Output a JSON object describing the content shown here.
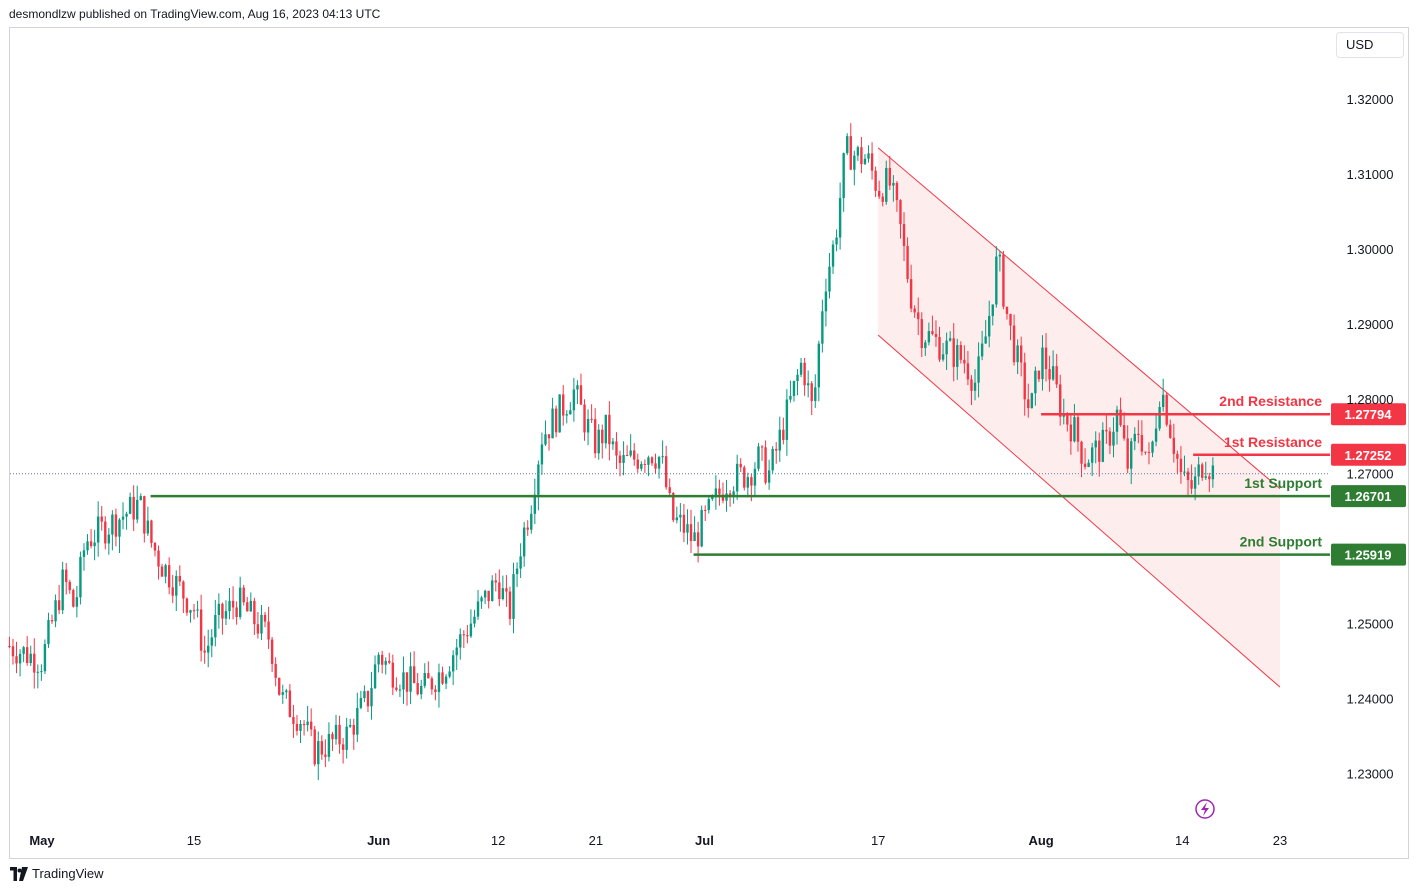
{
  "header": {
    "text": "desmondlzw published on TradingView.com, Aug 16, 2023 04:13 UTC"
  },
  "currency": {
    "label": "USD"
  },
  "footer": {
    "brand": "TradingView"
  },
  "colors": {
    "up": "#089981",
    "down": "#f23645",
    "support": "#2e7d32",
    "resistance": "#f23645",
    "channel_fill": "#fde7e7"
  },
  "chart_data": {
    "type": "candlestick",
    "title": "",
    "y_axis": {
      "ticks": [
        1.32,
        1.31,
        1.3,
        1.29,
        1.28,
        1.27,
        1.25,
        1.24,
        1.23
      ],
      "tick_labels": [
        "1.32000",
        "1.31000",
        "1.30000",
        "1.29000",
        "1.28000",
        "1.27000",
        "1.25000",
        "1.24000",
        "1.23000"
      ],
      "range": [
        1.2235,
        1.3295
      ]
    },
    "x_axis": {
      "labels": [
        {
          "text": "May",
          "date": "2023-05-01",
          "bold": true
        },
        {
          "text": "15",
          "date": "2023-05-15",
          "bold": false
        },
        {
          "text": "Jun",
          "date": "2023-06-01",
          "bold": true
        },
        {
          "text": "12",
          "date": "2023-06-12",
          "bold": false
        },
        {
          "text": "21",
          "date": "2023-06-21",
          "bold": false
        },
        {
          "text": "Jul",
          "date": "2023-07-01",
          "bold": true
        },
        {
          "text": "17",
          "date": "2023-07-17",
          "bold": false
        },
        {
          "text": "Aug",
          "date": "2023-08-01",
          "bold": true
        },
        {
          "text": "14",
          "date": "2023-08-14",
          "bold": false
        },
        {
          "text": "23",
          "date": "2023-08-23",
          "bold": false
        }
      ]
    },
    "price_path": [
      [
        "2023-04-28",
        1.247
      ],
      [
        "2023-05-01",
        1.245
      ],
      [
        "2023-05-03",
        1.256
      ],
      [
        "2023-05-04",
        1.252
      ],
      [
        "2023-05-05",
        1.261
      ],
      [
        "2023-05-08",
        1.264
      ],
      [
        "2023-05-10",
        1.266
      ],
      [
        "2023-05-11",
        1.261
      ],
      [
        "2023-05-12",
        1.258
      ],
      [
        "2023-05-15",
        1.252
      ],
      [
        "2023-05-16",
        1.246
      ],
      [
        "2023-05-17",
        1.25
      ],
      [
        "2023-05-19",
        1.253
      ],
      [
        "2023-05-22",
        1.248
      ],
      [
        "2023-05-23",
        1.24
      ],
      [
        "2023-05-25",
        1.237
      ],
      [
        "2023-05-26",
        1.233
      ],
      [
        "2023-05-29",
        1.235
      ],
      [
        "2023-05-31",
        1.24
      ],
      [
        "2023-06-01",
        1.246
      ],
      [
        "2023-06-02",
        1.244
      ],
      [
        "2023-06-05",
        1.241
      ],
      [
        "2023-06-07",
        1.244
      ],
      [
        "2023-06-09",
        1.249
      ],
      [
        "2023-06-12",
        1.256
      ],
      [
        "2023-06-13",
        1.251
      ],
      [
        "2023-06-14",
        1.26
      ],
      [
        "2023-06-15",
        1.266
      ],
      [
        "2023-06-16",
        1.275
      ],
      [
        "2023-06-19",
        1.281
      ],
      [
        "2023-06-20",
        1.277
      ],
      [
        "2023-06-21",
        1.274
      ],
      [
        "2023-06-22",
        1.276
      ],
      [
        "2023-06-23",
        1.271
      ],
      [
        "2023-06-26",
        1.273
      ],
      [
        "2023-06-27",
        1.272
      ],
      [
        "2023-06-28",
        1.264
      ],
      [
        "2023-06-29",
        1.263
      ],
      [
        "2023-06-30",
        1.261
      ],
      [
        "2023-07-03",
        1.269
      ],
      [
        "2023-07-05",
        1.27
      ],
      [
        "2023-07-06",
        1.272
      ],
      [
        "2023-07-07",
        1.27
      ],
      [
        "2023-07-10",
        1.285
      ],
      [
        "2023-07-11",
        1.278
      ],
      [
        "2023-07-12",
        1.295
      ],
      [
        "2023-07-13",
        1.301
      ],
      [
        "2023-07-14",
        1.313
      ],
      [
        "2023-07-16",
        1.312
      ],
      [
        "2023-07-17",
        1.308
      ],
      [
        "2023-07-18",
        1.309
      ],
      [
        "2023-07-19",
        1.303
      ],
      [
        "2023-07-20",
        1.294
      ],
      [
        "2023-07-21",
        1.289
      ],
      [
        "2023-07-24",
        1.286
      ],
      [
        "2023-07-25",
        1.285
      ],
      [
        "2023-07-26",
        1.282
      ],
      [
        "2023-07-27",
        1.289
      ],
      [
        "2023-07-28",
        1.299
      ],
      [
        "2023-07-29",
        1.29
      ],
      [
        "2023-07-31",
        1.278
      ],
      [
        "2023-08-01",
        1.286
      ],
      [
        "2023-08-02",
        1.283
      ],
      [
        "2023-08-03",
        1.278
      ],
      [
        "2023-08-04",
        1.276
      ],
      [
        "2023-08-05",
        1.272
      ],
      [
        "2023-08-07",
        1.274
      ],
      [
        "2023-08-08",
        1.278
      ],
      [
        "2023-08-09",
        1.271
      ],
      [
        "2023-08-10",
        1.276
      ],
      [
        "2023-08-11",
        1.271
      ],
      [
        "2023-08-12",
        1.282
      ],
      [
        "2023-08-14",
        1.269
      ],
      [
        "2023-08-15",
        1.268
      ],
      [
        "2023-08-16",
        1.272
      ],
      [
        "2023-08-17",
        1.27
      ]
    ],
    "channel": {
      "upper": [
        [
          "2023-07-17",
          1.3135
        ],
        [
          "2023-08-23",
          1.268
        ]
      ],
      "lower": [
        [
          "2023-07-17",
          1.2885
        ],
        [
          "2023-08-23",
          1.2415
        ]
      ]
    },
    "levels": [
      {
        "label": "2nd Resistance",
        "value": 1.27794,
        "value_text": "1.27794",
        "kind": "resistance",
        "from": "2023-08-01"
      },
      {
        "label": "1st Resistance",
        "value": 1.27252,
        "value_text": "1.27252",
        "kind": "resistance",
        "from": "2023-08-15"
      },
      {
        "label": "1st Support",
        "value": 1.26701,
        "value_text": "1.26701",
        "kind": "support",
        "from": "2023-05-11"
      },
      {
        "label": "2nd Support",
        "value": 1.25919,
        "value_text": "1.25919",
        "kind": "support",
        "from": "2023-06-30"
      }
    ],
    "current_price": 1.27,
    "grid": false,
    "legend": "none"
  }
}
